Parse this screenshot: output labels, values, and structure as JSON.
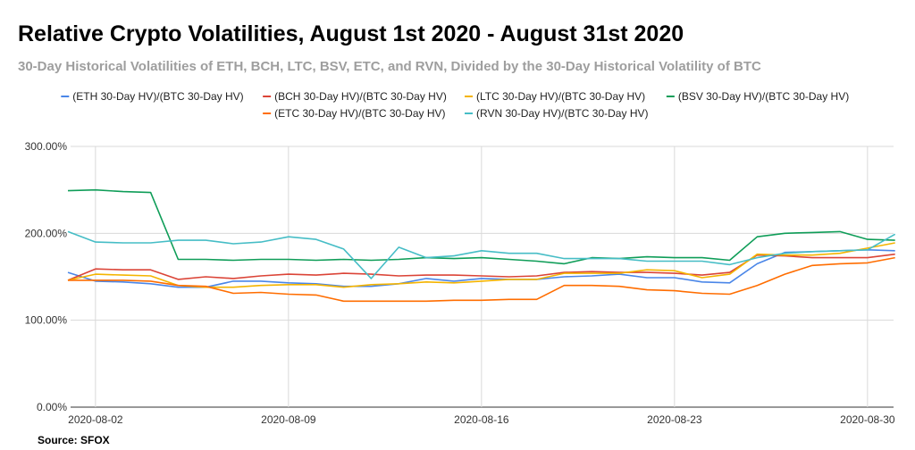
{
  "page": {
    "title": "Relative Crypto Volatilities, August 1st 2020 - August 31st 2020",
    "subtitle": "30-Day Historical Volatilities of ETH, BCH, LTC, BSV, ETC, and RVN, Divided by the 30-Day Historical Volatility of BTC",
    "source": "Source: SFOX"
  },
  "chart_data": {
    "type": "line",
    "title": "Relative Crypto Volatilities, August 1st 2020 - August 31st 2020",
    "subtitle": "30-Day Historical Volatilities of ETH, BCH, LTC, BSV, ETC, and RVN, Divided by the 30-Day Historical Volatility of BTC",
    "x": [
      "2020-08-01",
      "2020-08-02",
      "2020-08-03",
      "2020-08-04",
      "2020-08-05",
      "2020-08-06",
      "2020-08-07",
      "2020-08-08",
      "2020-08-09",
      "2020-08-10",
      "2020-08-11",
      "2020-08-12",
      "2020-08-13",
      "2020-08-14",
      "2020-08-15",
      "2020-08-16",
      "2020-08-17",
      "2020-08-18",
      "2020-08-19",
      "2020-08-20",
      "2020-08-21",
      "2020-08-22",
      "2020-08-23",
      "2020-08-24",
      "2020-08-25",
      "2020-08-26",
      "2020-08-27",
      "2020-08-28",
      "2020-08-29",
      "2020-08-30",
      "2020-08-31"
    ],
    "xticks": [
      "2020-08-02",
      "2020-08-09",
      "2020-08-16",
      "2020-08-23",
      "2020-08-30"
    ],
    "ylim": [
      0,
      3
    ],
    "yticks": [
      0,
      1,
      2,
      3
    ],
    "ytick_labels": [
      "0.00%",
      "100.00%",
      "200.00%",
      "300.00%"
    ],
    "grid": "vertical",
    "legend_position": "top",
    "series": [
      {
        "name": "(ETH 30-Day HV)/(BTC 30-Day HV)",
        "color": "#4a86e8",
        "values": [
          1.55,
          1.45,
          1.44,
          1.42,
          1.38,
          1.38,
          1.45,
          1.45,
          1.43,
          1.42,
          1.39,
          1.39,
          1.42,
          1.48,
          1.45,
          1.48,
          1.47,
          1.47,
          1.5,
          1.51,
          1.53,
          1.49,
          1.49,
          1.44,
          1.43,
          1.65,
          1.78,
          1.79,
          1.8,
          1.81,
          1.8
        ]
      },
      {
        "name": "(BCH 30-Day HV)/(BTC 30-Day HV)",
        "color": "#db4437",
        "values": [
          1.46,
          1.59,
          1.58,
          1.58,
          1.47,
          1.5,
          1.48,
          1.51,
          1.53,
          1.52,
          1.54,
          1.53,
          1.51,
          1.52,
          1.52,
          1.51,
          1.5,
          1.51,
          1.55,
          1.56,
          1.55,
          1.55,
          1.54,
          1.52,
          1.55,
          1.75,
          1.74,
          1.72,
          1.72,
          1.72,
          1.76
        ]
      },
      {
        "name": "(LTC 30-Day HV)/(BTC 30-Day HV)",
        "color": "#f4b400",
        "values": [
          1.46,
          1.53,
          1.52,
          1.51,
          1.4,
          1.38,
          1.38,
          1.4,
          1.41,
          1.41,
          1.38,
          1.41,
          1.42,
          1.44,
          1.43,
          1.45,
          1.47,
          1.47,
          1.54,
          1.54,
          1.54,
          1.58,
          1.57,
          1.49,
          1.53,
          1.76,
          1.75,
          1.75,
          1.77,
          1.83,
          1.89
        ]
      },
      {
        "name": "(BSV 30-Day HV)/(BTC 30-Day HV)",
        "color": "#0f9d58",
        "values": [
          2.49,
          2.5,
          2.48,
          2.47,
          1.7,
          1.7,
          1.69,
          1.7,
          1.7,
          1.69,
          1.7,
          1.69,
          1.7,
          1.72,
          1.71,
          1.72,
          1.7,
          1.68,
          1.65,
          1.72,
          1.71,
          1.73,
          1.72,
          1.72,
          1.69,
          1.96,
          2.0,
          2.01,
          2.02,
          1.93,
          1.92
        ]
      },
      {
        "name": "(ETC 30-Day HV)/(BTC 30-Day HV)",
        "color": "#ff6d00",
        "values": [
          1.46,
          1.46,
          1.46,
          1.45,
          1.4,
          1.39,
          1.31,
          1.32,
          1.3,
          1.29,
          1.22,
          1.22,
          1.22,
          1.22,
          1.23,
          1.23,
          1.24,
          1.24,
          1.4,
          1.4,
          1.39,
          1.35,
          1.34,
          1.31,
          1.3,
          1.4,
          1.53,
          1.63,
          1.65,
          1.66,
          1.72
        ]
      },
      {
        "name": "(RVN 30-Day HV)/(BTC 30-Day HV)",
        "color": "#46bdc6",
        "values": [
          2.02,
          1.9,
          1.89,
          1.89,
          1.92,
          1.92,
          1.88,
          1.9,
          1.96,
          1.93,
          1.82,
          1.48,
          1.84,
          1.72,
          1.74,
          1.8,
          1.77,
          1.77,
          1.71,
          1.71,
          1.71,
          1.68,
          1.68,
          1.68,
          1.64,
          1.72,
          1.77,
          1.79,
          1.8,
          1.81,
          1.99
        ]
      }
    ]
  }
}
